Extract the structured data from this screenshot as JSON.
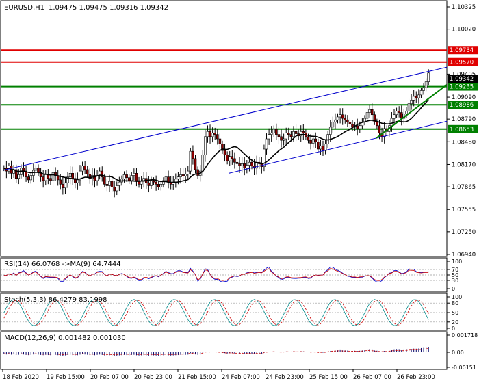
{
  "chart_data": [
    {
      "type": "candlestick",
      "title": "EURUSD,H1",
      "ohlc_label": "1.09475 1.09475 1.09316 1.09342",
      "ylim": [
        1.069,
        1.1035
      ],
      "yticks": [
        "1.10325",
        "1.10020",
        "1.09405",
        "1.09090",
        "1.08790",
        "1.08480",
        "1.08170",
        "1.07865",
        "1.07555",
        "1.07250",
        "1.06940"
      ],
      "ytick_values": [
        1.10325,
        1.1002,
        1.09405,
        1.0909,
        1.0879,
        1.0848,
        1.0817,
        1.07865,
        1.07555,
        1.0725,
        1.0694
      ],
      "current_price": {
        "label": "1.09342",
        "value": 1.09342
      },
      "resistance_levels": [
        {
          "label": "1.09734",
          "value": 1.09734,
          "color": "#e00000"
        },
        {
          "label": "1.09570",
          "value": 1.0957,
          "color": "#e00000"
        }
      ],
      "support_levels": [
        {
          "label": "1.09235",
          "value": 1.09235,
          "color": "#008000"
        },
        {
          "label": "1.08986",
          "value": 1.08986,
          "color": "#008000"
        },
        {
          "label": "1.08653",
          "value": 1.08653,
          "color": "#008000"
        }
      ],
      "ma_color": "#000000",
      "bull_color": "#ffffff",
      "bear_color": "#8b0000",
      "channel_color": "#0000cc",
      "candles_hourly_closes": [
        1.0812,
        1.0808,
        1.0815,
        1.0805,
        1.081,
        1.0798,
        1.0803,
        1.0812,
        1.0808,
        1.08,
        1.0796,
        1.0802,
        1.0809,
        1.0812,
        1.0806,
        1.08,
        1.0795,
        1.0803,
        1.0798,
        1.0795,
        1.0806,
        1.0802,
        1.0796,
        1.079,
        1.0785,
        1.0792,
        1.08,
        1.0805,
        1.0798,
        1.0792,
        1.0796,
        1.0808,
        1.0815,
        1.081,
        1.0804,
        1.0798,
        1.0802,
        1.0795,
        1.0802,
        1.0808,
        1.08,
        1.079,
        1.0788,
        1.0794,
        1.0786,
        1.0781,
        1.0788,
        1.0793,
        1.0797,
        1.0803,
        1.0799,
        1.0795,
        1.0802,
        1.0805,
        1.0795,
        1.079,
        1.0794,
        1.0798,
        1.0792,
        1.0788,
        1.0795,
        1.0793,
        1.079,
        1.0786,
        1.079,
        1.0795,
        1.08,
        1.0793,
        1.079,
        1.0793,
        1.0797,
        1.08,
        1.0803,
        1.0801,
        1.0804,
        1.0808,
        1.0835,
        1.0825,
        1.081,
        1.0802,
        1.0808,
        1.083,
        1.0855,
        1.0862,
        1.0855,
        1.086,
        1.0858,
        1.0852,
        1.0845,
        1.0836,
        1.083,
        1.0822,
        1.0828,
        1.0825,
        1.082,
        1.0818,
        1.0815,
        1.0818,
        1.0812,
        1.0816,
        1.082,
        1.0815,
        1.0812,
        1.082,
        1.0818,
        1.0814,
        1.0838,
        1.0852,
        1.0858,
        1.086,
        1.0865,
        1.0858,
        1.0855,
        1.085,
        1.0852,
        1.086,
        1.0858,
        1.0855,
        1.0862,
        1.0859,
        1.0856,
        1.0862,
        1.086,
        1.0855,
        1.085,
        1.0846,
        1.0852,
        1.0848,
        1.0838,
        1.0842,
        1.0836,
        1.0845,
        1.0858,
        1.0868,
        1.0875,
        1.0878,
        1.0882,
        1.0885,
        1.088,
        1.0878,
        1.0875,
        1.0872,
        1.0868,
        1.087,
        1.0866,
        1.087,
        1.0875,
        1.088,
        1.0888,
        1.0892,
        1.0885,
        1.0875,
        1.087,
        1.086,
        1.0855,
        1.0866,
        1.0862,
        1.087,
        1.088,
        1.0885,
        1.089,
        1.0888,
        1.088,
        1.0886,
        1.089,
        1.09,
        1.0905,
        1.091,
        1.0908,
        1.0912,
        1.0918,
        1.0922,
        1.093,
        1.0942
      ]
    },
    {
      "type": "line",
      "title": "RSI(14) 66.0768 ->MA(9) 64.7444",
      "yticks": [
        "100",
        "70",
        "50",
        "30",
        "0"
      ],
      "ytick_values": [
        100,
        70,
        50,
        30,
        0
      ],
      "ylim": [
        0,
        100
      ],
      "levels": [
        70,
        50,
        30
      ]
    },
    {
      "type": "line",
      "title": "Stoch(5,3,3) 86.4279 83.1998",
      "yticks": [
        "100",
        "80",
        "50",
        "20",
        "0"
      ],
      "ytick_values": [
        100,
        80,
        50,
        20,
        0
      ],
      "ylim": [
        0,
        100
      ],
      "levels": [
        80,
        50,
        20
      ]
    },
    {
      "type": "bar",
      "title": "MACD(12,26,9) 0.001482 0.001030",
      "yticks": [
        "0.001718",
        "0.00",
        "-0.00151"
      ],
      "ytick_values": [
        0.001718,
        0,
        -0.00151
      ],
      "ylim": [
        -0.00151,
        0.001718
      ]
    }
  ],
  "x_axis_labels": [
    "18 Feb 2020",
    "19 Feb 15:00",
    "20 Feb 07:00",
    "20 Feb 23:00",
    "21 Feb 15:00",
    "24 Feb 07:00",
    "24 Feb 23:00",
    "25 Feb 15:00",
    "26 Feb 07:00",
    "26 Feb 23:00"
  ]
}
